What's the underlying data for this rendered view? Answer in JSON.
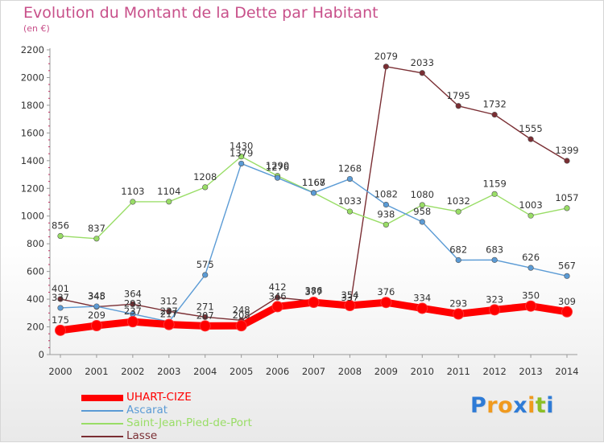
{
  "title": "Evolution du Montant de la Dette par Habitant",
  "subtitle": "(en €)",
  "logo": {
    "letters": [
      "P",
      "r",
      "o",
      "x",
      "i",
      "t",
      "i"
    ],
    "colors": [
      "#2e7bd6",
      "#f09a1e",
      "#f09a1e",
      "#2e7bd6",
      "#f09a1e",
      "#8cbf26",
      "#2e7bd6"
    ]
  },
  "chart_data": {
    "type": "line",
    "x": [
      2000,
      2001,
      2002,
      2003,
      2004,
      2005,
      2006,
      2007,
      2008,
      2009,
      2010,
      2011,
      2012,
      2013,
      2014
    ],
    "ylim": [
      0,
      2200
    ],
    "yticks": [
      0,
      200,
      400,
      600,
      800,
      1000,
      1200,
      1400,
      1600,
      1800,
      2000,
      2200
    ],
    "grid": false,
    "legend_position": "bottom-left",
    "series": [
      {
        "name": "UHART-CIZE",
        "color": "#ff0000",
        "values": [
          175,
          209,
          237,
          217,
          207,
          208,
          346,
          377,
          354,
          376,
          334,
          293,
          323,
          350,
          309
        ],
        "labels": [
          "175",
          "209",
          "237",
          "217",
          "207",
          "208",
          "346",
          "377",
          "354",
          "376",
          "334",
          "293",
          "323",
          "350",
          "309"
        ]
      },
      {
        "name": "Ascarat",
        "color": "#5b9bd5",
        "values": [
          337,
          348,
          293,
          237,
          575,
          1379,
          1276,
          1167,
          1268,
          1082,
          958,
          682,
          683,
          626,
          567
        ],
        "labels": [
          "337",
          "348",
          "293",
          "237",
          "575",
          "1379",
          "1276",
          "1167",
          "1268",
          "1082",
          "958",
          "682",
          "683",
          "626",
          "567"
        ]
      },
      {
        "name": "Saint-Jean-Pied-de-Port",
        "color": "#99dd66",
        "values": [
          856,
          837,
          1103,
          1104,
          1208,
          1430,
          1290,
          1168,
          1033,
          938,
          1080,
          1032,
          1159,
          1003,
          1057
        ],
        "labels": [
          "856",
          "837",
          "1103",
          "1104",
          "1208",
          "1430",
          "1290",
          "1168",
          "1033",
          "938",
          "1080",
          "1032",
          "1159",
          "1003",
          "1057"
        ]
      },
      {
        "name": "Lasse",
        "color": "#7a2e33",
        "values": [
          401,
          345,
          364,
          312,
          271,
          248,
          412,
          386,
          337,
          2079,
          2033,
          1795,
          1732,
          1555,
          1399
        ],
        "labels": [
          "401",
          "345",
          "364",
          "312",
          "271",
          "248",
          "412",
          "386",
          "337",
          "2079",
          "2033",
          "1795",
          "1732",
          "1555",
          "1399"
        ]
      }
    ]
  }
}
